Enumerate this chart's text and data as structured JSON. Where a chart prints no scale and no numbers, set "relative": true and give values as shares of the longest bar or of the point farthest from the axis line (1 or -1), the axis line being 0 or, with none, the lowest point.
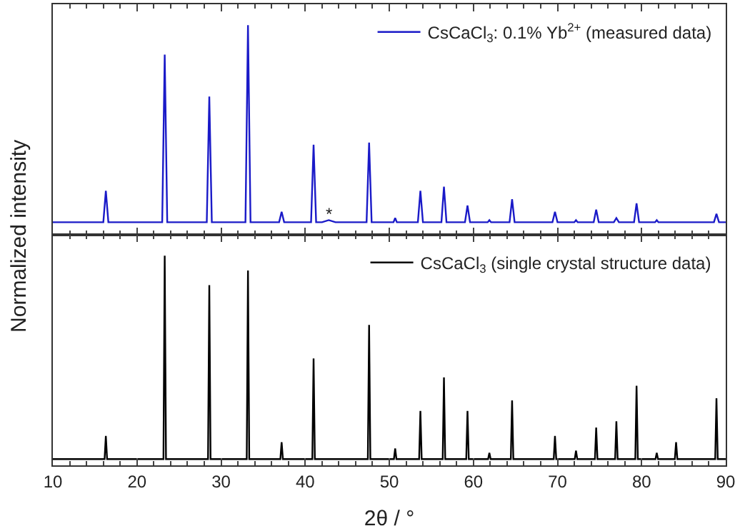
{
  "chart_data": [
    {
      "type": "line",
      "relative": true,
      "ylabel": "Normalized intensity",
      "xlim": [
        10,
        90
      ],
      "xticks": [
        10,
        20,
        30,
        40,
        50,
        60,
        70,
        80,
        90
      ],
      "tick_labels": false,
      "legend": "top right",
      "annotations": [
        {
          "text": "*",
          "x": 42.8,
          "y": 0.1
        }
      ],
      "series": [
        {
          "name": "CsCaCl$_{3}$: 0.1% Yb$^{2+}$ (measured data)",
          "color": "#1a1ac8",
          "x": [
            10,
            16.0,
            16.3,
            16.6,
            23.0,
            23.3,
            23.6,
            28.3,
            28.6,
            28.9,
            32.9,
            33.2,
            33.5,
            36.9,
            37.2,
            37.5,
            40.7,
            41.0,
            41.3,
            42.0,
            42.8,
            43.6,
            47.3,
            47.6,
            47.9,
            50.5,
            50.7,
            50.9,
            53.4,
            53.7,
            54.0,
            56.2,
            56.5,
            56.8,
            59.0,
            59.3,
            59.6,
            61.7,
            61.9,
            62.1,
            64.3,
            64.6,
            64.9,
            69.4,
            69.7,
            70.0,
            72.0,
            72.2,
            72.4,
            74.3,
            74.6,
            74.9,
            76.7,
            77.0,
            77.3,
            79.1,
            79.4,
            79.7,
            81.6,
            81.8,
            82.0,
            88.6,
            88.9,
            89.2,
            90
          ],
          "values": [
            0.06,
            0.06,
            0.21,
            0.06,
            0.06,
            0.86,
            0.06,
            0.06,
            0.66,
            0.06,
            0.06,
            1.0,
            0.06,
            0.06,
            0.11,
            0.06,
            0.06,
            0.43,
            0.06,
            0.06,
            0.07,
            0.06,
            0.06,
            0.44,
            0.06,
            0.06,
            0.08,
            0.06,
            0.06,
            0.21,
            0.06,
            0.06,
            0.23,
            0.06,
            0.06,
            0.14,
            0.06,
            0.06,
            0.07,
            0.06,
            0.06,
            0.17,
            0.06,
            0.06,
            0.11,
            0.06,
            0.06,
            0.07,
            0.06,
            0.06,
            0.12,
            0.06,
            0.06,
            0.08,
            0.06,
            0.06,
            0.15,
            0.06,
            0.06,
            0.07,
            0.06,
            0.06,
            0.1,
            0.06,
            0.06
          ]
        }
      ]
    },
    {
      "type": "line",
      "relative": true,
      "xlabel": "2θ / °",
      "xlim": [
        10,
        90
      ],
      "xticks": [
        10,
        20,
        30,
        40,
        50,
        60,
        70,
        80,
        90
      ],
      "tick_labels": "x",
      "legend": "top right",
      "series": [
        {
          "name": "CsCaCl$_{3}$ (single crystal structure data)",
          "color": "#000000",
          "x": [
            10,
            16.15,
            16.3,
            16.45,
            23.15,
            23.3,
            23.45,
            28.45,
            28.6,
            28.75,
            33.05,
            33.2,
            33.35,
            37.05,
            37.2,
            37.35,
            40.85,
            41.0,
            41.15,
            47.45,
            47.6,
            47.75,
            50.55,
            50.7,
            50.85,
            53.55,
            53.7,
            53.85,
            56.35,
            56.5,
            56.65,
            59.15,
            59.3,
            59.45,
            61.75,
            61.9,
            62.05,
            64.45,
            64.6,
            64.75,
            69.55,
            69.7,
            69.85,
            72.05,
            72.2,
            72.35,
            74.45,
            74.6,
            74.75,
            76.85,
            77.0,
            77.15,
            79.25,
            79.4,
            79.55,
            81.65,
            81.8,
            81.95,
            83.95,
            84.1,
            84.25,
            88.75,
            88.9,
            89.05,
            90
          ],
          "values": [
            0.03,
            0.03,
            0.14,
            0.03,
            0.03,
            1.0,
            0.03,
            0.03,
            0.86,
            0.03,
            0.03,
            0.93,
            0.03,
            0.03,
            0.11,
            0.03,
            0.03,
            0.51,
            0.03,
            0.03,
            0.67,
            0.03,
            0.03,
            0.08,
            0.03,
            0.03,
            0.26,
            0.03,
            0.03,
            0.42,
            0.03,
            0.03,
            0.26,
            0.03,
            0.03,
            0.06,
            0.03,
            0.03,
            0.31,
            0.03,
            0.03,
            0.14,
            0.03,
            0.03,
            0.07,
            0.03,
            0.03,
            0.18,
            0.03,
            0.03,
            0.21,
            0.03,
            0.03,
            0.38,
            0.03,
            0.03,
            0.06,
            0.03,
            0.03,
            0.11,
            0.03,
            0.03,
            0.32,
            0.03,
            0.03
          ]
        }
      ]
    }
  ]
}
